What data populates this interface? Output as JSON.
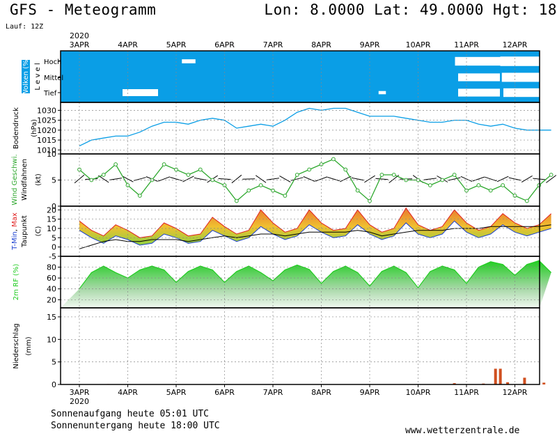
{
  "header": {
    "title": "GFS - Meteogramm",
    "location": "Lon: 8.0000 Lat: 49.0000 Hgt: 18",
    "run": "Lauf: 12Z"
  },
  "footer": {
    "sunrise": "Sonnenaufgang heute 05:01 UTC",
    "sunset": "Sonnenuntergang heute 18:00 UTC",
    "site": "www.wetterzentrale.de"
  },
  "colors": {
    "cloud_bg": "#0a9ee6",
    "pressure": "#0a9ee6",
    "wind": "#2ea82e",
    "tmin": "#1a3fd0",
    "tmax": "#e02020",
    "rh": "#22cc22",
    "precip_bar": "#d05020"
  },
  "chart_data": [
    {
      "type": "area",
      "panel": "clouds",
      "ylabel": "Wolken (%)",
      "ylabel2": "Level",
      "categories": [
        "Hoch",
        "Mittel",
        "Tief"
      ],
      "x": [
        "3APR",
        "4APR",
        "5APR",
        "6APR",
        "7APR",
        "8APR",
        "9APR",
        "10APR",
        "11APR",
        "12APR"
      ],
      "year": "2020",
      "series": [
        {
          "name": "Hoch",
          "values": [
            0,
            0,
            15,
            0,
            0,
            0,
            0,
            0,
            70,
            80
          ]
        },
        {
          "name": "Mittel",
          "values": [
            0,
            0,
            0,
            0,
            0,
            0,
            0,
            0,
            60,
            75
          ]
        },
        {
          "name": "Tief",
          "values": [
            0,
            50,
            0,
            0,
            0,
            0,
            5,
            0,
            60,
            70
          ]
        }
      ]
    },
    {
      "type": "line",
      "panel": "pressure",
      "ylabel": "Bodendruck",
      "ylabel2": "(hPa)",
      "ylim": [
        1008,
        1034
      ],
      "yticks": [
        1010,
        1015,
        1020,
        1025,
        1030
      ],
      "x": [
        0,
        0.25,
        0.5,
        0.75,
        1,
        1.25,
        1.5,
        1.75,
        2,
        2.25,
        2.5,
        2.75,
        3,
        3.25,
        3.5,
        3.75,
        4,
        4.25,
        4.5,
        4.75,
        5,
        5.25,
        5.5,
        5.75,
        6,
        6.25,
        6.5,
        6.75,
        7,
        7.25,
        7.5,
        7.75,
        8,
        8.25,
        8.5,
        8.75,
        9,
        9.25,
        9.5,
        9.75
      ],
      "values": [
        1012,
        1015,
        1016,
        1017,
        1017,
        1019,
        1022,
        1024,
        1024,
        1023,
        1025,
        1026,
        1025,
        1021,
        1022,
        1023,
        1022,
        1025,
        1029,
        1031,
        1030,
        1031,
        1031,
        1029,
        1027,
        1027,
        1027,
        1026,
        1025,
        1024,
        1024,
        1025,
        1025,
        1023,
        1022,
        1023,
        1021,
        1020,
        1020,
        1020
      ]
    },
    {
      "type": "line",
      "panel": "wind",
      "ylabel": "Wind Geschwi.",
      "ylabel2": "Windfahnen",
      "ylabel3": "(kt)",
      "ylim": [
        0,
        10
      ],
      "yticks": [
        0,
        5,
        10
      ],
      "x": [
        0,
        0.25,
        0.5,
        0.75,
        1,
        1.25,
        1.5,
        1.75,
        2,
        2.25,
        2.5,
        2.75,
        3,
        3.25,
        3.5,
        3.75,
        4,
        4.25,
        4.5,
        4.75,
        5,
        5.25,
        5.5,
        5.75,
        6,
        6.25,
        6.5,
        6.75,
        7,
        7.25,
        7.5,
        7.75,
        8,
        8.25,
        8.5,
        8.75,
        9,
        9.25,
        9.5,
        9.75
      ],
      "values": [
        7,
        5,
        6,
        8,
        4,
        2,
        5,
        8,
        7,
        6,
        7,
        5,
        4,
        1,
        3,
        4,
        3,
        2,
        6,
        7,
        8,
        9,
        7,
        3,
        1,
        6,
        6,
        5,
        5,
        4,
        5,
        6,
        3,
        4,
        3,
        4,
        2,
        1,
        4,
        6
      ]
    },
    {
      "type": "area",
      "panel": "temperature",
      "ylabel": "T-Min, Max",
      "ylabel2": "Taupunkt",
      "ylabel3": "(C)",
      "ylim": [
        -5,
        22
      ],
      "yticks": [
        -5,
        0,
        5,
        10,
        15,
        20
      ],
      "x": [
        0,
        0.25,
        0.5,
        0.75,
        1,
        1.25,
        1.5,
        1.75,
        2,
        2.25,
        2.5,
        2.75,
        3,
        3.25,
        3.5,
        3.75,
        4,
        4.25,
        4.5,
        4.75,
        5,
        5.25,
        5.5,
        5.75,
        6,
        6.25,
        6.5,
        6.75,
        7,
        7.25,
        7.5,
        7.75,
        8,
        8.25,
        8.5,
        8.75,
        9,
        9.25,
        9.5,
        9.75
      ],
      "series": [
        {
          "name": "T-Min",
          "values": [
            12,
            8,
            5,
            9,
            7,
            4,
            5,
            10,
            8,
            5,
            6,
            12,
            9,
            6,
            8,
            14,
            10,
            7,
            9,
            15,
            11,
            8,
            9,
            15,
            10,
            7,
            9,
            16,
            10,
            8,
            10,
            17,
            11,
            8,
            10,
            15,
            11,
            9,
            11,
            13
          ]
        },
        {
          "name": "T-Max",
          "values": [
            14,
            9,
            6,
            12,
            9,
            5,
            6,
            13,
            10,
            6,
            7,
            16,
            11,
            7,
            9,
            20,
            13,
            8,
            10,
            20,
            13,
            9,
            10,
            20,
            12,
            8,
            10,
            21,
            12,
            9,
            11,
            20,
            13,
            9,
            11,
            18,
            13,
            10,
            12,
            18
          ]
        },
        {
          "name": "Taupunkt",
          "values": [
            -1,
            1,
            3,
            4,
            3,
            3,
            4,
            4,
            4,
            3,
            4,
            5,
            6,
            5,
            6,
            7,
            7,
            6,
            7,
            8,
            8,
            8,
            8,
            9,
            8,
            6,
            7,
            8,
            9,
            9,
            9,
            10,
            10,
            10,
            11,
            11,
            11,
            11,
            11,
            12
          ]
        }
      ]
    },
    {
      "type": "area",
      "panel": "humidity",
      "ylabel": "2m RF (%)",
      "ylim": [
        5,
        100
      ],
      "yticks": [
        20,
        40,
        60,
        80
      ],
      "x": [
        0,
        0.25,
        0.5,
        0.75,
        1,
        1.25,
        1.5,
        1.75,
        2,
        2.25,
        2.5,
        2.75,
        3,
        3.25,
        3.5,
        3.75,
        4,
        4.25,
        4.5,
        4.75,
        5,
        5.25,
        5.5,
        5.75,
        6,
        6.25,
        6.5,
        6.75,
        7,
        7.25,
        7.5,
        7.75,
        8,
        8.25,
        8.5,
        8.75,
        9,
        9.25,
        9.5,
        9.75
      ],
      "values": [
        40,
        70,
        82,
        70,
        60,
        75,
        82,
        75,
        52,
        72,
        82,
        75,
        52,
        72,
        82,
        70,
        55,
        75,
        84,
        76,
        50,
        72,
        82,
        70,
        45,
        72,
        82,
        70,
        42,
        72,
        82,
        75,
        50,
        80,
        90,
        85,
        65,
        85,
        92,
        70
      ]
    },
    {
      "type": "bar",
      "panel": "precipitation",
      "ylabel": "Niederschlag",
      "ylabel2": "(mm)",
      "ylim": [
        0,
        17
      ],
      "yticks": [
        0,
        5,
        10,
        15
      ],
      "x": [
        0.6,
        7.75,
        8.35,
        8.6,
        8.7,
        8.85,
        9.2,
        9.6
      ],
      "values": [
        0.1,
        0.3,
        0.2,
        3.5,
        3.5,
        0.5,
        1.5,
        0.4
      ]
    }
  ]
}
